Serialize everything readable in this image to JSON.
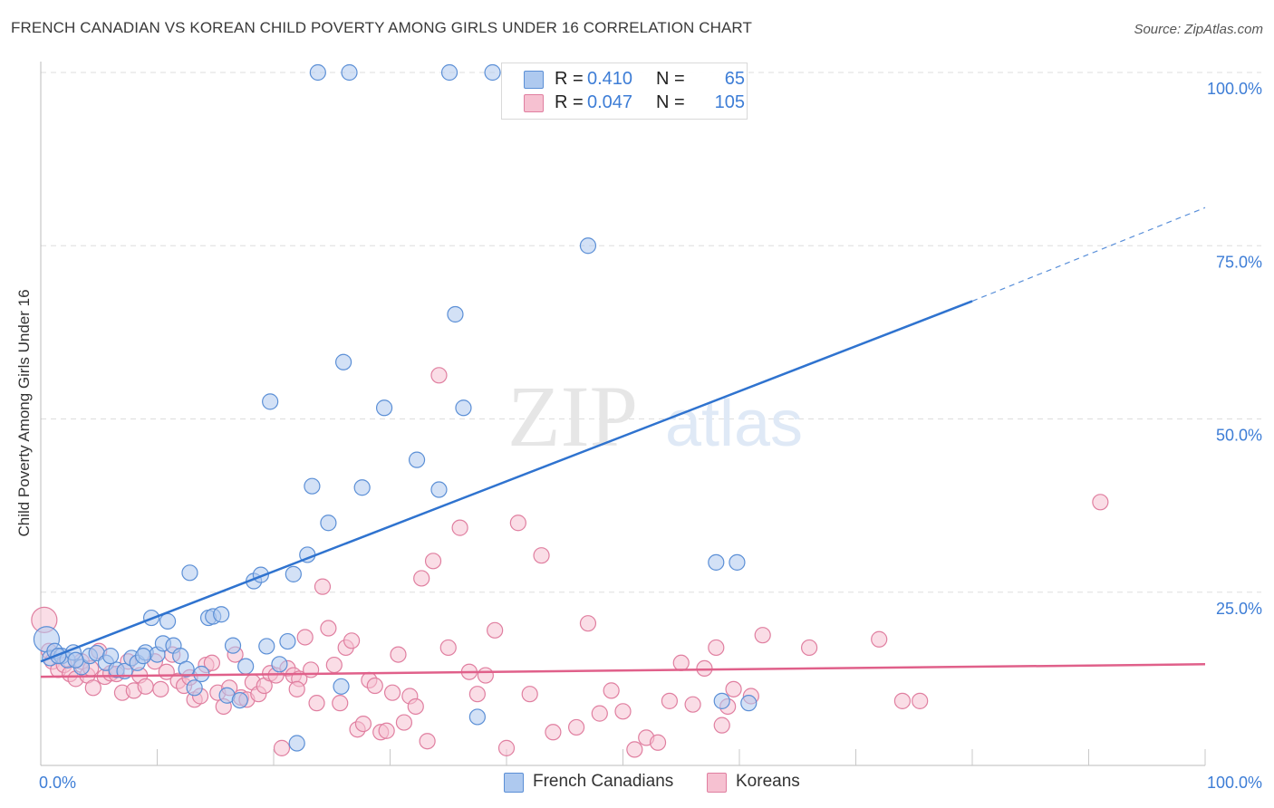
{
  "title": "FRENCH CANADIAN VS KOREAN CHILD POVERTY AMONG GIRLS UNDER 16 CORRELATION CHART",
  "source": "Source: ZipAtlas.com",
  "watermark": {
    "zip": "ZIP",
    "atlas": "atlas"
  },
  "colors": {
    "french_fill": "#aec9ef",
    "french_stroke": "#5b8fd6",
    "french_line": "#2f73cf",
    "korean_fill": "#f6c1d1",
    "korean_stroke": "#e07fa0",
    "korean_line": "#e0608a",
    "value_text": "#3d7dd6",
    "grid": "#dddddd"
  },
  "stats": [
    {
      "r_label": "R =",
      "r_value": "0.410",
      "n_label": "N =",
      "n_value": "65"
    },
    {
      "r_label": "R =",
      "r_value": "0.047",
      "n_label": "N =",
      "n_value": "105"
    }
  ],
  "legend": [
    {
      "label": "French Canadians"
    },
    {
      "label": "Koreans"
    }
  ],
  "chart_data": {
    "type": "scatter",
    "title": "FRENCH CANADIAN VS KOREAN CHILD POVERTY AMONG GIRLS UNDER 16 CORRELATION CHART",
    "xlabel": "",
    "ylabel": "Child Poverty Among Girls Under 16",
    "xlim": [
      0,
      100
    ],
    "ylim": [
      0,
      100
    ],
    "x_tick_labels": [
      "0.0%",
      "100.0%"
    ],
    "y_tick_labels": [
      "100.0%",
      "75.0%",
      "50.0%",
      "25.0%"
    ],
    "y_ticks": [
      100,
      75,
      50,
      25
    ],
    "grid": true,
    "legend_position": "bottom",
    "series": [
      {
        "name": "French Canadians",
        "points": [
          [
            0.5,
            18.2
          ],
          [
            0.8,
            15.5
          ],
          [
            1.2,
            16.5
          ],
          [
            1.8,
            15.8
          ],
          [
            2.3,
            15.2
          ],
          [
            2.8,
            16.3
          ],
          [
            3.5,
            14.2
          ],
          [
            4.2,
            15.8
          ],
          [
            4.8,
            16.2
          ],
          [
            5.6,
            14.8
          ],
          [
            6.5,
            13.8
          ],
          [
            7.2,
            13.6
          ],
          [
            7.8,
            15.5
          ],
          [
            8.3,
            14.8
          ],
          [
            9.0,
            16.3
          ],
          [
            9.5,
            21.3
          ],
          [
            10.0,
            16.0
          ],
          [
            10.5,
            17.6
          ],
          [
            10.9,
            20.8
          ],
          [
            11.4,
            17.3
          ],
          [
            12.0,
            15.8
          ],
          [
            12.5,
            13.9
          ],
          [
            12.8,
            27.8
          ],
          [
            13.2,
            11.2
          ],
          [
            13.8,
            13.2
          ],
          [
            14.4,
            21.3
          ],
          [
            14.8,
            21.5
          ],
          [
            15.5,
            21.8
          ],
          [
            16.0,
            10.1
          ],
          [
            16.5,
            17.3
          ],
          [
            17.1,
            9.4
          ],
          [
            17.6,
            14.3
          ],
          [
            18.3,
            26.6
          ],
          [
            18.9,
            27.5
          ],
          [
            19.4,
            17.2
          ],
          [
            19.7,
            52.5
          ],
          [
            20.5,
            14.6
          ],
          [
            21.2,
            17.9
          ],
          [
            21.7,
            27.6
          ],
          [
            22.0,
            3.2
          ],
          [
            22.9,
            30.4
          ],
          [
            23.3,
            40.3
          ],
          [
            23.8,
            100
          ],
          [
            24.7,
            35.0
          ],
          [
            25.8,
            11.4
          ],
          [
            26.0,
            58.2
          ],
          [
            26.5,
            100
          ],
          [
            27.6,
            40.1
          ],
          [
            29.5,
            51.6
          ],
          [
            32.3,
            44.1
          ],
          [
            34.2,
            39.8
          ],
          [
            35.1,
            100
          ],
          [
            35.6,
            65.1
          ],
          [
            36.3,
            51.6
          ],
          [
            37.5,
            7.0
          ],
          [
            38.8,
            100
          ],
          [
            47.0,
            75.0
          ],
          [
            58.0,
            29.3
          ],
          [
            59.8,
            29.3
          ],
          [
            58.5,
            9.3
          ],
          [
            60.8,
            9.0
          ],
          [
            1.5,
            15.8
          ],
          [
            3.0,
            15.2
          ],
          [
            6.0,
            15.8
          ],
          [
            8.8,
            15.8
          ]
        ]
      },
      {
        "name": "Koreans",
        "points": [
          [
            0.3,
            21.0
          ],
          [
            0.7,
            16.5
          ],
          [
            1.0,
            15.0
          ],
          [
            1.5,
            13.8
          ],
          [
            2.0,
            14.5
          ],
          [
            2.5,
            13.2
          ],
          [
            3.0,
            12.5
          ],
          [
            3.5,
            15.0
          ],
          [
            4.0,
            13.0
          ],
          [
            4.5,
            11.2
          ],
          [
            5.0,
            16.5
          ],
          [
            5.5,
            12.8
          ],
          [
            6.0,
            13.3
          ],
          [
            6.5,
            13.2
          ],
          [
            7.0,
            10.5
          ],
          [
            7.5,
            15.0
          ],
          [
            8.0,
            10.8
          ],
          [
            8.5,
            13.0
          ],
          [
            9.0,
            11.4
          ],
          [
            9.8,
            15.0
          ],
          [
            10.3,
            11.0
          ],
          [
            10.8,
            13.5
          ],
          [
            11.3,
            16.0
          ],
          [
            11.8,
            12.2
          ],
          [
            12.3,
            11.5
          ],
          [
            12.8,
            12.7
          ],
          [
            13.2,
            9.5
          ],
          [
            13.7,
            10.0
          ],
          [
            14.2,
            14.5
          ],
          [
            14.7,
            14.8
          ],
          [
            15.2,
            10.5
          ],
          [
            15.7,
            8.5
          ],
          [
            16.2,
            11.2
          ],
          [
            16.7,
            16.0
          ],
          [
            17.2,
            9.8
          ],
          [
            17.7,
            9.5
          ],
          [
            18.2,
            12.0
          ],
          [
            18.7,
            10.3
          ],
          [
            19.2,
            11.5
          ],
          [
            19.7,
            13.3
          ],
          [
            20.2,
            13.0
          ],
          [
            20.7,
            2.5
          ],
          [
            21.2,
            14.0
          ],
          [
            21.7,
            13.0
          ],
          [
            22.2,
            12.5
          ],
          [
            22.7,
            18.5
          ],
          [
            23.2,
            13.8
          ],
          [
            23.7,
            9.0
          ],
          [
            24.2,
            25.8
          ],
          [
            24.7,
            19.8
          ],
          [
            25.2,
            14.5
          ],
          [
            25.7,
            9.0
          ],
          [
            26.2,
            17.0
          ],
          [
            26.7,
            18.0
          ],
          [
            27.2,
            5.2
          ],
          [
            27.7,
            6.0
          ],
          [
            28.2,
            12.3
          ],
          [
            28.7,
            11.5
          ],
          [
            29.2,
            4.8
          ],
          [
            29.7,
            5.0
          ],
          [
            30.2,
            10.5
          ],
          [
            30.7,
            16.0
          ],
          [
            31.2,
            6.2
          ],
          [
            31.7,
            10.0
          ],
          [
            32.2,
            8.5
          ],
          [
            32.7,
            27.0
          ],
          [
            33.2,
            3.5
          ],
          [
            33.7,
            29.5
          ],
          [
            34.2,
            56.3
          ],
          [
            35.0,
            17.0
          ],
          [
            36.0,
            34.3
          ],
          [
            36.8,
            13.5
          ],
          [
            37.5,
            10.3
          ],
          [
            38.2,
            13.0
          ],
          [
            39.0,
            19.5
          ],
          [
            40.0,
            2.5
          ],
          [
            41.0,
            35.0
          ],
          [
            42.0,
            10.3
          ],
          [
            43.0,
            30.3
          ],
          [
            44.0,
            4.8
          ],
          [
            46.0,
            5.5
          ],
          [
            47.0,
            20.5
          ],
          [
            48.0,
            7.5
          ],
          [
            49.0,
            10.8
          ],
          [
            50.0,
            7.8
          ],
          [
            51.0,
            2.3
          ],
          [
            52.0,
            4.0
          ],
          [
            53.0,
            3.3
          ],
          [
            54.0,
            9.3
          ],
          [
            55.0,
            14.8
          ],
          [
            56.0,
            8.8
          ],
          [
            57.0,
            14.0
          ],
          [
            58.0,
            17.0
          ],
          [
            58.5,
            5.8
          ],
          [
            59.0,
            8.5
          ],
          [
            59.5,
            11.0
          ],
          [
            61.0,
            10.0
          ],
          [
            62.0,
            18.8
          ],
          [
            66.0,
            17.0
          ],
          [
            72.0,
            18.2
          ],
          [
            74.0,
            9.3
          ],
          [
            75.5,
            9.3
          ],
          [
            91.0,
            38.0
          ],
          [
            4.3,
            14.0
          ],
          [
            22.0,
            11.0
          ]
        ]
      }
    ],
    "trendlines": [
      {
        "series": "French Canadians",
        "x0": 0,
        "y0": 15.0,
        "x1": 80,
        "y1": 67.0,
        "dashed_to": [
          100,
          80.5
        ]
      },
      {
        "series": "Koreans",
        "x0": 0,
        "y0": 12.8,
        "x1": 100,
        "y1": 14.6
      }
    ]
  }
}
